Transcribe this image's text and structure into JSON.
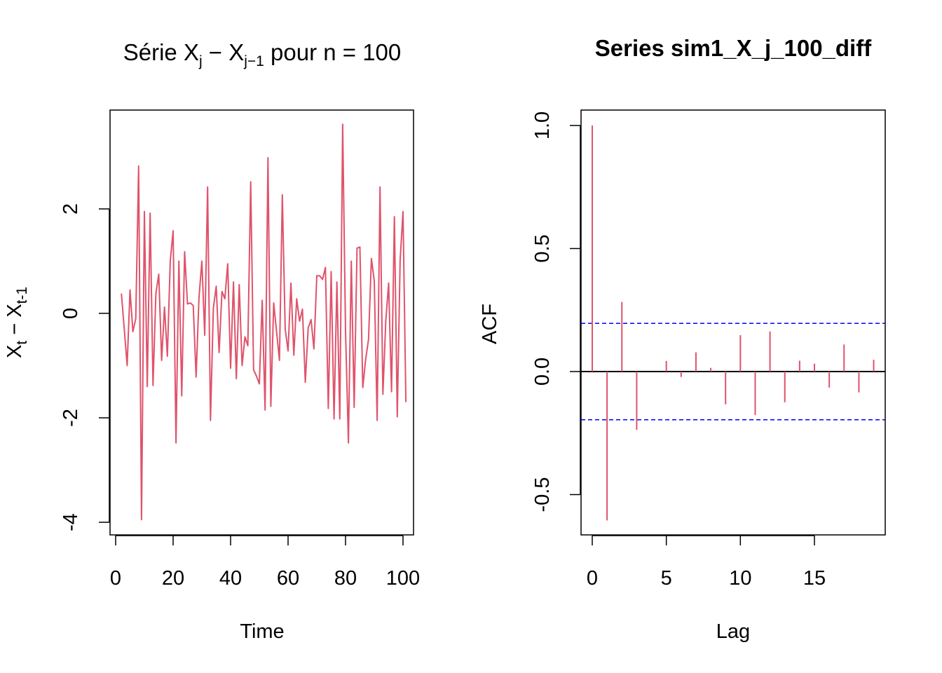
{
  "chart_data": [
    {
      "type": "line",
      "title": {
        "prefix": "Série X",
        "sub1": "j",
        "minus": " − X",
        "sub2": "j−1",
        "suffix": " pour n =  100"
      },
      "xlabel": "Time",
      "ylabel": {
        "a": "X",
        "a_sub": "t",
        "minus": " − X",
        "b_sub": "t-1"
      },
      "xlim": [
        -0.0,
        102.0
      ],
      "ylim": [
        -4.25,
        3.9
      ],
      "xticks": [
        "0",
        "20",
        "40",
        "60",
        "80",
        "100"
      ],
      "xtick_values": [
        0,
        20,
        40,
        60,
        80,
        100
      ],
      "yticks": [
        "-4",
        "-2",
        "0",
        "2"
      ],
      "ytick_values": [
        -4,
        -2,
        0,
        2
      ],
      "color": "#DF536B",
      "x_start": 2,
      "values": [
        0.38,
        -0.3,
        -1.0,
        0.45,
        -0.35,
        -0.1,
        2.82,
        -3.95,
        1.95,
        -1.4,
        1.92,
        -1.38,
        0.38,
        0.75,
        -0.9,
        0.12,
        -0.82,
        1.0,
        1.58,
        -2.48,
        1.0,
        -1.58,
        1.18,
        0.18,
        0.2,
        0.15,
        -1.22,
        0.3,
        1.0,
        -0.42,
        2.42,
        -2.05,
        0.1,
        0.52,
        -0.75,
        0.42,
        0.28,
        0.95,
        -1.05,
        0.6,
        -1.25,
        0.55,
        -1.0,
        -0.45,
        -0.62,
        2.52,
        -1.08,
        -1.2,
        -1.35,
        0.25,
        -1.85,
        2.98,
        -1.78,
        0.2,
        -0.35,
        -0.9,
        2.27,
        -0.3,
        -0.72,
        0.58,
        -0.8,
        0.28,
        -0.15,
        0.08,
        -1.32,
        -0.28,
        -0.12,
        -0.68,
        0.72,
        0.72,
        0.65,
        0.88,
        -1.82,
        0.8,
        -2.02,
        0.6,
        -2.02,
        3.62,
        -0.35,
        -2.48,
        1.0,
        -1.8,
        1.25,
        1.27,
        -1.42,
        -0.88,
        -0.5,
        1.05,
        0.62,
        -2.05,
        2.42,
        -1.55,
        -0.15,
        0.58,
        -1.5,
        1.85,
        -1.98,
        1.02,
        1.95,
        -1.7
      ]
    },
    {
      "type": "bar",
      "title": "Series  sim1_X_j_100_diff",
      "xlabel": "Lag",
      "ylabel": "ACF",
      "xlim": [
        -0.8,
        19.8
      ],
      "ylim": [
        -0.66,
        1.06
      ],
      "xticks": [
        "0",
        "5",
        "10",
        "15"
      ],
      "xtick_values": [
        0,
        5,
        10,
        15
      ],
      "yticks": [
        "-0.5",
        "0.0",
        "0.5",
        "1.0"
      ],
      "ytick_values": [
        -0.5,
        0,
        0.5,
        1.0
      ],
      "color": "#DF536B",
      "ci_color": "#0000FF",
      "ci": 0.196,
      "lags": [
        0,
        1,
        2,
        3,
        4,
        5,
        6,
        7,
        8,
        9,
        10,
        11,
        12,
        13,
        14,
        15,
        16,
        17,
        18,
        19
      ],
      "values": [
        1.0,
        -0.605,
        0.283,
        -0.237,
        0.0,
        0.043,
        -0.022,
        0.078,
        0.015,
        -0.133,
        0.148,
        -0.177,
        0.163,
        -0.125,
        0.044,
        0.032,
        -0.065,
        0.11,
        -0.085,
        0.048
      ]
    }
  ]
}
